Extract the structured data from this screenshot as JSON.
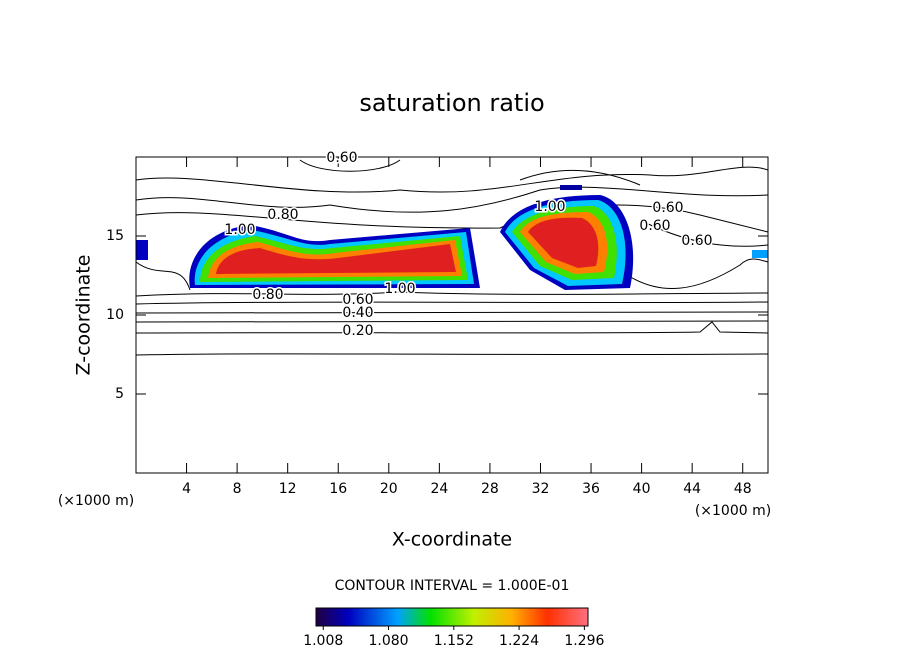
{
  "chart_data": {
    "type": "contour",
    "title": "saturation ratio",
    "x_label": "X-coordinate",
    "y_label": "Z-coordinate",
    "x_unit": "(×1000 m)",
    "y_unit": "(×1000 m)",
    "xlim": [
      0,
      50
    ],
    "xticks": [
      4,
      8,
      12,
      16,
      20,
      24,
      28,
      32,
      36,
      40,
      44,
      48
    ],
    "ylim": [
      0,
      20
    ],
    "yticks": [
      5,
      10,
      15
    ],
    "contour_interval_text": "CONTOUR INTERVAL = 1.000E-01",
    "contour_labels": [
      {
        "value": 0.6,
        "label": "0.60"
      },
      {
        "value": 0.8,
        "label": "0.80"
      },
      {
        "value": 1.0,
        "label": "1.00"
      },
      {
        "value": 0.8,
        "label": "0.80"
      },
      {
        "value": 0.6,
        "label": "0.60"
      },
      {
        "value": 0.4,
        "label": "0.40"
      },
      {
        "value": 0.2,
        "label": "0.20"
      },
      {
        "value": 1.0,
        "label": "1.00"
      },
      {
        "value": 1.0,
        "label": "1.00"
      },
      {
        "value": 0.6,
        "label": "0.60"
      },
      {
        "value": 0.6,
        "label": "0.60"
      },
      {
        "value": 0.6,
        "label": "0.60"
      }
    ],
    "clim": [
      1.0,
      1.3
    ],
    "cticks": [
      1.008,
      {
        "value": 1.08,
        "label": "1.080"
      },
      1.152,
      1.224,
      1.296
    ]
  }
}
